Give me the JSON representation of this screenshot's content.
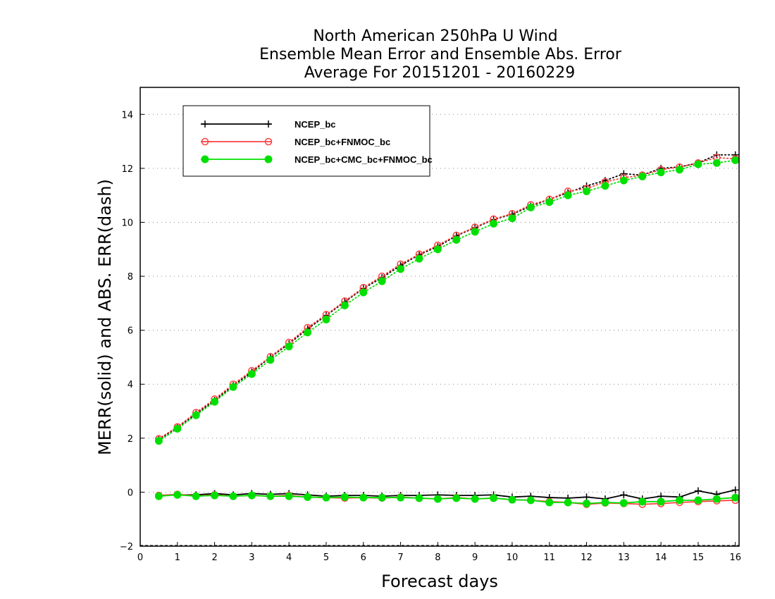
{
  "chart_data": {
    "type": "line",
    "title": [
      "North American 250hPa U Wind",
      "Ensemble Mean Error and Ensemble Abs. Error",
      "Average For 20151201 - 20160229"
    ],
    "xlabel": "Forecast days",
    "ylabel": "MERR(solid) and ABS. ERR(dash)",
    "xlim": [
      0,
      16.1
    ],
    "ylim": [
      -2,
      15
    ],
    "xticks": [
      0,
      1,
      2,
      3,
      4,
      5,
      6,
      7,
      8,
      9,
      10,
      11,
      12,
      13,
      14,
      15,
      16
    ],
    "yticks": [
      -2,
      0,
      2,
      4,
      6,
      8,
      10,
      12,
      14
    ],
    "grid": "dotted horizontal",
    "legend_position": "top-left",
    "x": [
      0.5,
      1,
      1.5,
      2,
      2.5,
      3,
      3.5,
      4,
      4.5,
      5,
      5.5,
      6,
      6.5,
      7,
      7.5,
      8,
      8.5,
      9,
      9.5,
      10,
      10.5,
      11,
      11.5,
      12,
      12.5,
      13,
      13.5,
      14,
      14.5,
      15,
      15.5,
      16
    ],
    "series": [
      {
        "name": "NCEP_bc",
        "color": "#000000",
        "marker": "plus",
        "abs_err": [
          1.95,
          2.4,
          2.9,
          3.4,
          3.95,
          4.45,
          5.0,
          5.5,
          6.05,
          6.55,
          7.05,
          7.55,
          7.95,
          8.4,
          8.8,
          9.1,
          9.5,
          9.8,
          10.1,
          10.3,
          10.6,
          10.85,
          11.1,
          11.35,
          11.55,
          11.8,
          11.75,
          12.0,
          12.05,
          12.2,
          12.5,
          12.5
        ],
        "mean_err": [
          -0.12,
          -0.1,
          -0.1,
          -0.05,
          -0.1,
          -0.05,
          -0.08,
          -0.05,
          -0.1,
          -0.15,
          -0.12,
          -0.12,
          -0.15,
          -0.12,
          -0.12,
          -0.1,
          -0.12,
          -0.12,
          -0.1,
          -0.18,
          -0.15,
          -0.2,
          -0.22,
          -0.18,
          -0.25,
          -0.1,
          -0.25,
          -0.15,
          -0.18,
          0.05,
          -0.08,
          0.08
        ]
      },
      {
        "name": "NCEP_bc+FNMOC_bc",
        "color": "#ff4040",
        "marker": "open-circle",
        "abs_err": [
          1.98,
          2.42,
          2.95,
          3.45,
          4.0,
          4.5,
          5.02,
          5.55,
          6.1,
          6.58,
          7.08,
          7.58,
          8.0,
          8.45,
          8.82,
          9.15,
          9.52,
          9.82,
          10.12,
          10.32,
          10.65,
          10.85,
          11.15,
          11.25,
          11.5,
          11.65,
          11.75,
          11.95,
          12.05,
          12.2,
          12.4,
          12.35
        ],
        "mean_err": [
          -0.12,
          -0.08,
          -0.14,
          -0.1,
          -0.15,
          -0.12,
          -0.15,
          -0.12,
          -0.18,
          -0.2,
          -0.22,
          -0.2,
          -0.22,
          -0.18,
          -0.22,
          -0.25,
          -0.2,
          -0.25,
          -0.22,
          -0.28,
          -0.3,
          -0.35,
          -0.38,
          -0.45,
          -0.4,
          -0.42,
          -0.45,
          -0.42,
          -0.38,
          -0.35,
          -0.32,
          -0.3
        ]
      },
      {
        "name": "NCEP_bc+CMC_bc+FNMOC_bc",
        "color": "#00e000",
        "marker": "filled-circle",
        "abs_err": [
          1.9,
          2.35,
          2.85,
          3.35,
          3.9,
          4.38,
          4.9,
          5.4,
          5.92,
          6.4,
          6.92,
          7.4,
          7.82,
          8.27,
          8.65,
          9.0,
          9.35,
          9.65,
          9.95,
          10.15,
          10.55,
          10.75,
          11.0,
          11.15,
          11.35,
          11.55,
          11.7,
          11.85,
          11.95,
          12.15,
          12.2,
          12.3
        ],
        "mean_err": [
          -0.15,
          -0.1,
          -0.15,
          -0.12,
          -0.15,
          -0.12,
          -0.15,
          -0.15,
          -0.18,
          -0.2,
          -0.18,
          -0.2,
          -0.2,
          -0.2,
          -0.22,
          -0.25,
          -0.22,
          -0.25,
          -0.22,
          -0.28,
          -0.3,
          -0.38,
          -0.38,
          -0.42,
          -0.38,
          -0.4,
          -0.35,
          -0.35,
          -0.3,
          -0.3,
          -0.25,
          -0.2
        ]
      }
    ]
  }
}
